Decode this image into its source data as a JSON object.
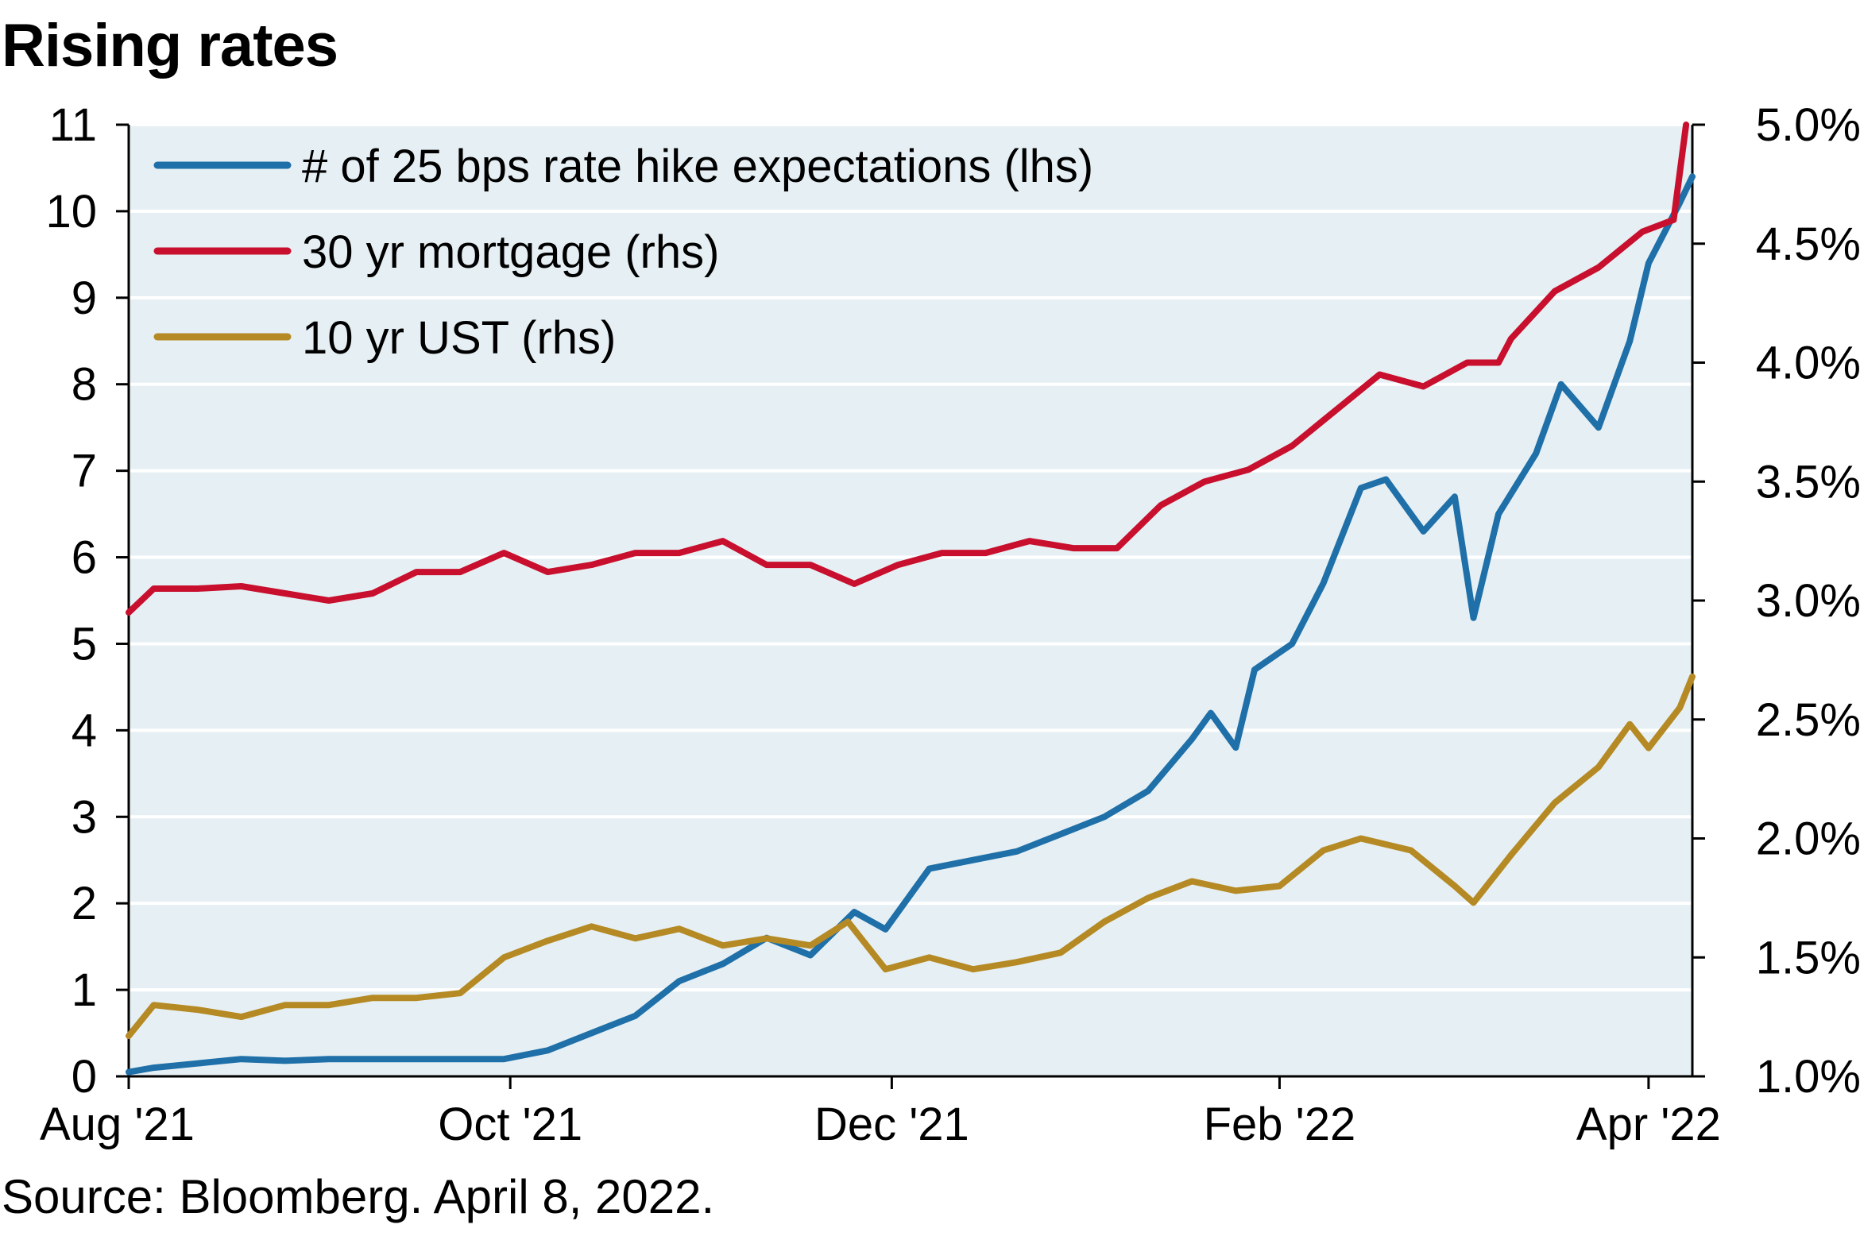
{
  "title": "Rising rates",
  "source": "Source: Bloomberg. April 8, 2022.",
  "chart_data": {
    "type": "line",
    "background_color": "#E6F0F4",
    "gridlines": true,
    "legend_position": "top-left",
    "x_ticks": [
      {
        "label": "Aug '21",
        "value": "2021-08-01"
      },
      {
        "label": "Oct '21",
        "value": "2021-10-01"
      },
      {
        "label": "Dec '21",
        "value": "2021-12-01"
      },
      {
        "label": "Feb '22",
        "value": "2022-02-01"
      },
      {
        "label": "Apr '22",
        "value": "2022-04-01"
      }
    ],
    "x_range": [
      "2021-08-01",
      "2022-04-08"
    ],
    "y_left": {
      "ylim": [
        0,
        11
      ],
      "ticks": [
        "0",
        "1",
        "2",
        "3",
        "4",
        "5",
        "6",
        "7",
        "8",
        "9",
        "10",
        "11"
      ]
    },
    "y_right": {
      "ylim": [
        1.0,
        5.0
      ],
      "ticks": [
        "1.0%",
        "1.5%",
        "2.0%",
        "2.5%",
        "3.0%",
        "3.5%",
        "4.0%",
        "4.5%",
        "5.0%"
      ]
    },
    "series": [
      {
        "name": "# of 25 bps rate hike expectations (lhs)",
        "axis": "left",
        "color": "#1F6FA8",
        "x": [
          "2021-08-01",
          "2021-08-05",
          "2021-08-12",
          "2021-08-19",
          "2021-08-26",
          "2021-09-02",
          "2021-09-09",
          "2021-09-16",
          "2021-09-23",
          "2021-09-30",
          "2021-10-07",
          "2021-10-14",
          "2021-10-21",
          "2021-10-28",
          "2021-11-04",
          "2021-11-11",
          "2021-11-18",
          "2021-11-25",
          "2021-11-30",
          "2021-12-07",
          "2021-12-14",
          "2021-12-21",
          "2021-12-28",
          "2022-01-04",
          "2022-01-11",
          "2022-01-18",
          "2022-01-21",
          "2022-01-25",
          "2022-01-28",
          "2022-02-03",
          "2022-02-08",
          "2022-02-14",
          "2022-02-18",
          "2022-02-24",
          "2022-03-01",
          "2022-03-04",
          "2022-03-08",
          "2022-03-14",
          "2022-03-18",
          "2022-03-24",
          "2022-03-29",
          "2022-04-01",
          "2022-04-06",
          "2022-04-08"
        ],
        "values": [
          0.05,
          0.1,
          0.15,
          0.2,
          0.18,
          0.2,
          0.2,
          0.2,
          0.2,
          0.2,
          0.3,
          0.5,
          0.7,
          1.1,
          1.3,
          1.6,
          1.4,
          1.9,
          1.7,
          2.4,
          2.5,
          2.6,
          2.8,
          3.0,
          3.3,
          3.9,
          4.2,
          3.8,
          4.7,
          5.0,
          5.7,
          6.8,
          6.9,
          6.3,
          6.7,
          5.3,
          6.5,
          7.2,
          8.0,
          7.5,
          8.5,
          9.4,
          10.1,
          10.4
        ]
      },
      {
        "name": "30 yr mortgage (rhs)",
        "axis": "right",
        "color": "#C8102E",
        "x": [
          "2021-08-01",
          "2021-08-05",
          "2021-08-12",
          "2021-08-19",
          "2021-08-26",
          "2021-09-02",
          "2021-09-09",
          "2021-09-16",
          "2021-09-23",
          "2021-09-30",
          "2021-10-07",
          "2021-10-14",
          "2021-10-21",
          "2021-10-28",
          "2021-11-04",
          "2021-11-11",
          "2021-11-18",
          "2021-11-25",
          "2021-12-02",
          "2021-12-09",
          "2021-12-16",
          "2021-12-23",
          "2021-12-30",
          "2022-01-06",
          "2022-01-13",
          "2022-01-20",
          "2022-01-27",
          "2022-02-03",
          "2022-02-10",
          "2022-02-17",
          "2022-02-24",
          "2022-03-03",
          "2022-03-08",
          "2022-03-10",
          "2022-03-17",
          "2022-03-24",
          "2022-03-31",
          "2022-04-05",
          "2022-04-07"
        ],
        "values": [
          2.95,
          3.05,
          3.05,
          3.06,
          3.03,
          3.0,
          3.03,
          3.12,
          3.12,
          3.2,
          3.12,
          3.15,
          3.2,
          3.2,
          3.25,
          3.15,
          3.15,
          3.07,
          3.15,
          3.2,
          3.2,
          3.25,
          3.22,
          3.22,
          3.4,
          3.5,
          3.55,
          3.65,
          3.8,
          3.95,
          3.9,
          4.0,
          4.0,
          4.1,
          4.3,
          4.4,
          4.55,
          4.6,
          5.0
        ]
      },
      {
        "name": "10 yr UST (rhs)",
        "axis": "right",
        "color": "#B58A25",
        "x": [
          "2021-08-01",
          "2021-08-05",
          "2021-08-12",
          "2021-08-19",
          "2021-08-26",
          "2021-09-02",
          "2021-09-09",
          "2021-09-16",
          "2021-09-23",
          "2021-09-30",
          "2021-10-07",
          "2021-10-14",
          "2021-10-21",
          "2021-10-28",
          "2021-11-04",
          "2021-11-11",
          "2021-11-18",
          "2021-11-24",
          "2021-11-30",
          "2021-12-07",
          "2021-12-14",
          "2021-12-21",
          "2021-12-28",
          "2022-01-04",
          "2022-01-11",
          "2022-01-18",
          "2022-01-25",
          "2022-02-01",
          "2022-02-08",
          "2022-02-14",
          "2022-02-22",
          "2022-03-01",
          "2022-03-04",
          "2022-03-10",
          "2022-03-17",
          "2022-03-24",
          "2022-03-29",
          "2022-04-01",
          "2022-04-06",
          "2022-04-08"
        ],
        "values": [
          1.17,
          1.3,
          1.28,
          1.25,
          1.3,
          1.3,
          1.33,
          1.33,
          1.35,
          1.5,
          1.57,
          1.63,
          1.58,
          1.62,
          1.55,
          1.58,
          1.55,
          1.65,
          1.45,
          1.5,
          1.45,
          1.48,
          1.52,
          1.65,
          1.75,
          1.82,
          1.78,
          1.8,
          1.95,
          2.0,
          1.95,
          1.8,
          1.73,
          1.93,
          2.15,
          2.3,
          2.48,
          2.38,
          2.55,
          2.68
        ]
      }
    ]
  }
}
